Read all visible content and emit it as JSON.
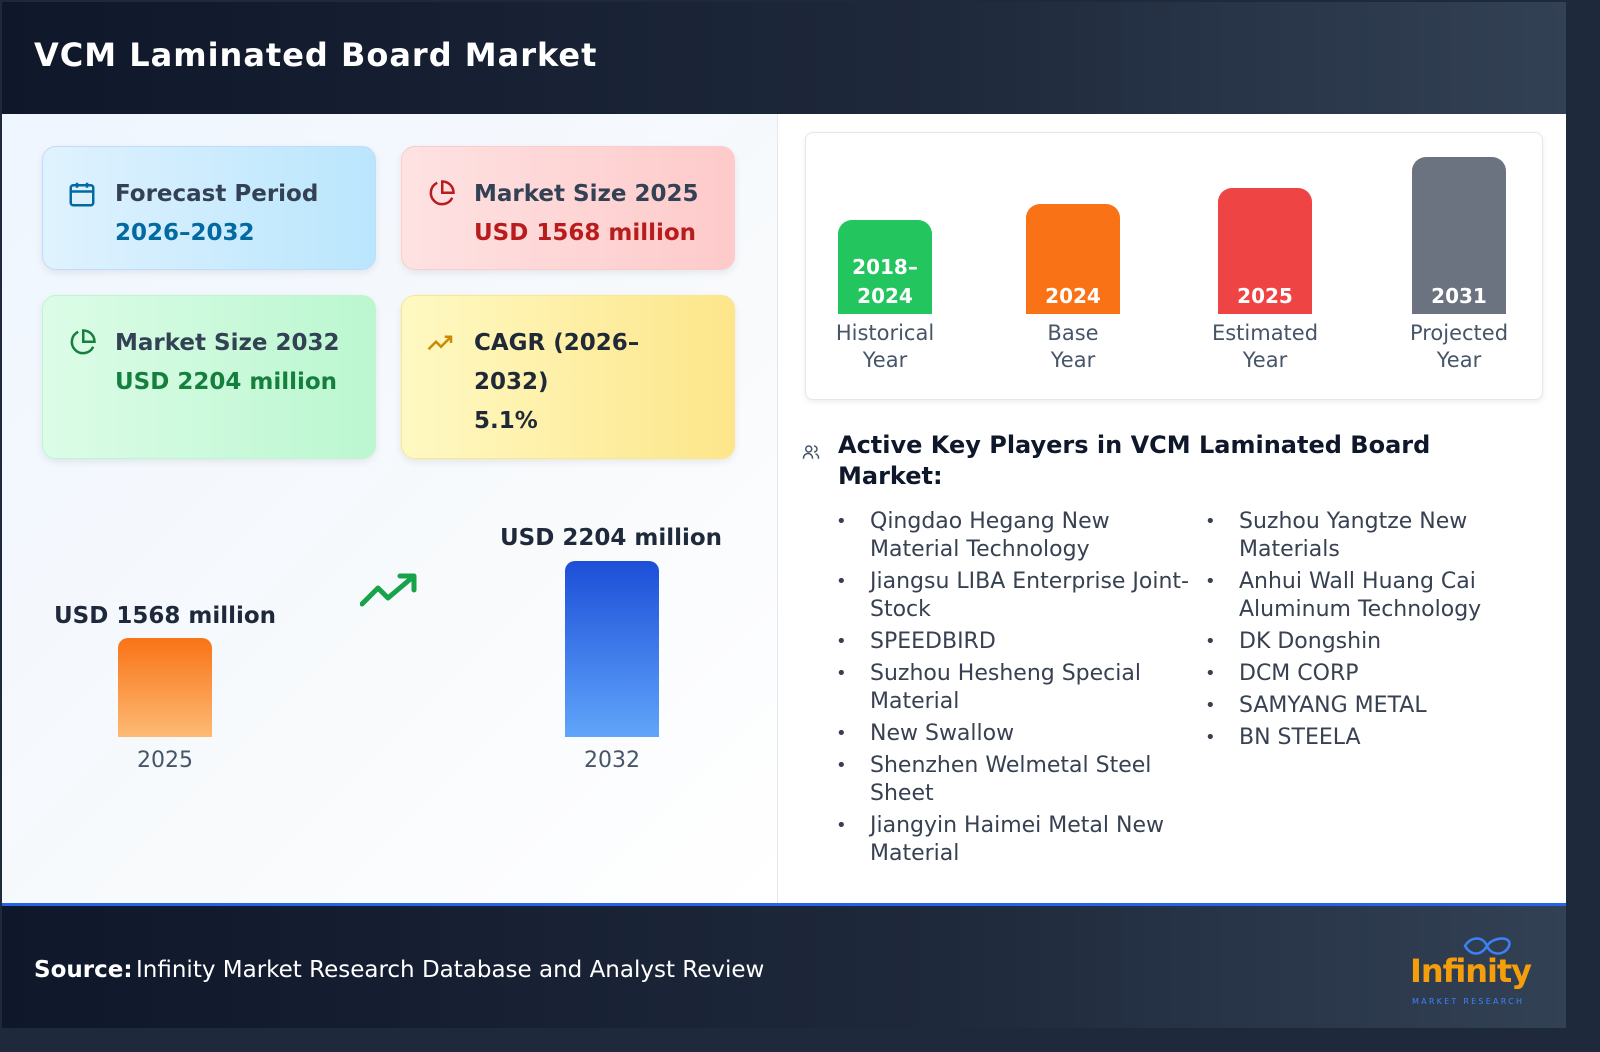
{
  "header": {
    "title": "VCM Laminated Board Market"
  },
  "cards": [
    {
      "label": "Forecast Period",
      "value": "2026–2032",
      "icon": "calendar-icon",
      "color": "#0369a1"
    },
    {
      "label": "Market Size 2025",
      "value": "USD 1568 million",
      "icon": "pie-chart-icon",
      "color": "#b91c1c"
    },
    {
      "label": "Market Size 2032",
      "value": "USD 2204 million",
      "icon": "pie-chart-icon",
      "color": "#15803d"
    },
    {
      "label": "CAGR (2026–2032)",
      "value": "5.1%",
      "icon": "trending-up-icon",
      "color": "#1f2937"
    }
  ],
  "chart_data": {
    "type": "bar",
    "categories": [
      "2025",
      "2032"
    ],
    "values": [
      1568,
      2204
    ],
    "labels": [
      "USD 1568 million",
      "USD 2204 million"
    ],
    "unit": "USD million"
  },
  "timeline": [
    {
      "year": "2018–2024",
      "label": "Historical Year",
      "color": "#22c55e"
    },
    {
      "year": "2024",
      "label": "Base Year",
      "color": "#f97316"
    },
    {
      "year": "2025",
      "label": "Estimated Year",
      "color": "#ef4444"
    },
    {
      "year": "2031",
      "label": "Projected Year",
      "color": "#6b7280"
    }
  ],
  "players": {
    "title": "Active Key Players in VCM Laminated Board Market:",
    "col1": [
      "Qingdao Hegang New Material Technology",
      "Jiangsu LIBA Enterprise Joint-Stock",
      "SPEEDBIRD",
      "Suzhou Hesheng Special Material",
      "New Swallow",
      "Shenzhen Welmetal Steel Sheet",
      "Jiangyin Haimei Metal New Material"
    ],
    "col2": [
      "Suzhou Yangtze New Materials",
      "Anhui Wall Huang Cai Aluminum Technology",
      "DK Dongshin",
      "DCM CORP",
      "SAMYANG METAL",
      "BN STEELA"
    ]
  },
  "footer": {
    "source_label": "Source:",
    "source_text": " Infinity Market Research Database and Analyst Review",
    "logo_text": "Infinity",
    "logo_sub": "MARKET RESEARCH"
  }
}
